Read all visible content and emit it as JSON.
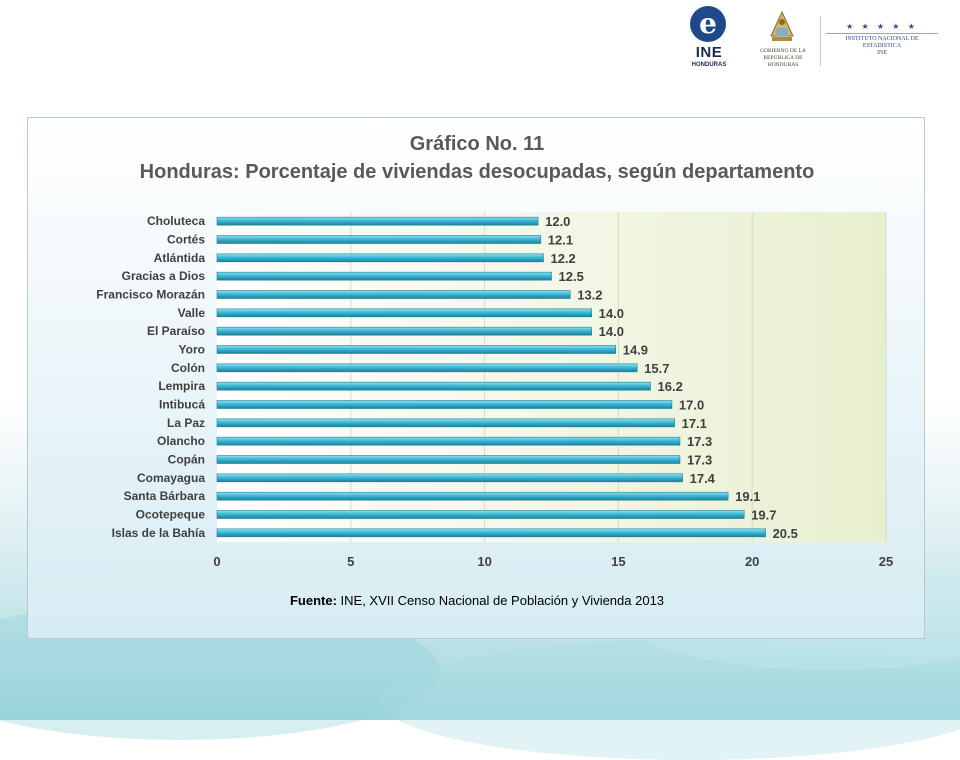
{
  "header": {
    "ine_logo_letter": "e",
    "ine_logo_text": "INE",
    "ine_logo_subtext": "HONDURAS",
    "gov_seal_text_1": "GOBIERNO DE LA",
    "gov_seal_text_2": "REPÚBLICA DE HONDURAS",
    "institute_stars": "★ ★ ★ ★ ★",
    "institute_line_1": "INSTITUTO NACIONAL DE",
    "institute_line_2": "ESTADÍSTICA",
    "institute_line_3": "INE"
  },
  "chart_title_1": "Gráfico No. 11",
  "chart_title_2": "Honduras: Porcentaje de viviendas desocupadas, según departamento",
  "source_label": "Fuente:",
  "source_text": " INE, XVII Censo Nacional de Población y Vivienda 2013",
  "colors": {
    "bar": "#3bb8d6",
    "bar_highlight": "#8fe2f2",
    "bar_shadow": "#1f7f99",
    "plot_bg_left": "#ffffff",
    "plot_bg_right": "#e8efcf",
    "label": "#404040"
  },
  "chart_data": {
    "type": "bar",
    "orientation": "horizontal",
    "categories": [
      "Choluteca",
      "Cortés",
      "Atlántida",
      "Gracias a Dios",
      "Francisco Morazán",
      "Valle",
      "El Paraíso",
      "Yoro",
      "Colón",
      "Lempira",
      "Intibucá",
      "La Paz",
      "Olancho",
      "Copán",
      "Comayagua",
      "Santa Bárbara",
      "Ocotepeque",
      "Islas de la Bahía"
    ],
    "values": [
      12.0,
      12.1,
      12.2,
      12.5,
      13.2,
      14.0,
      14.0,
      14.9,
      15.7,
      16.2,
      17.0,
      17.1,
      17.3,
      17.3,
      17.4,
      19.1,
      19.7,
      20.5
    ],
    "value_labels": [
      "12.0",
      "12.1",
      "12.2",
      "12.5",
      "13.2",
      "14.0",
      "14.0",
      "14.9",
      "15.7",
      "16.2",
      "17.0",
      "17.1",
      "17.3",
      "17.3",
      "17.4",
      "19.1",
      "19.7",
      "20.5"
    ],
    "x_ticks": [
      "0",
      "5",
      "10",
      "15",
      "20",
      "25"
    ],
    "xlim": [
      0,
      25
    ],
    "grid": true
  }
}
